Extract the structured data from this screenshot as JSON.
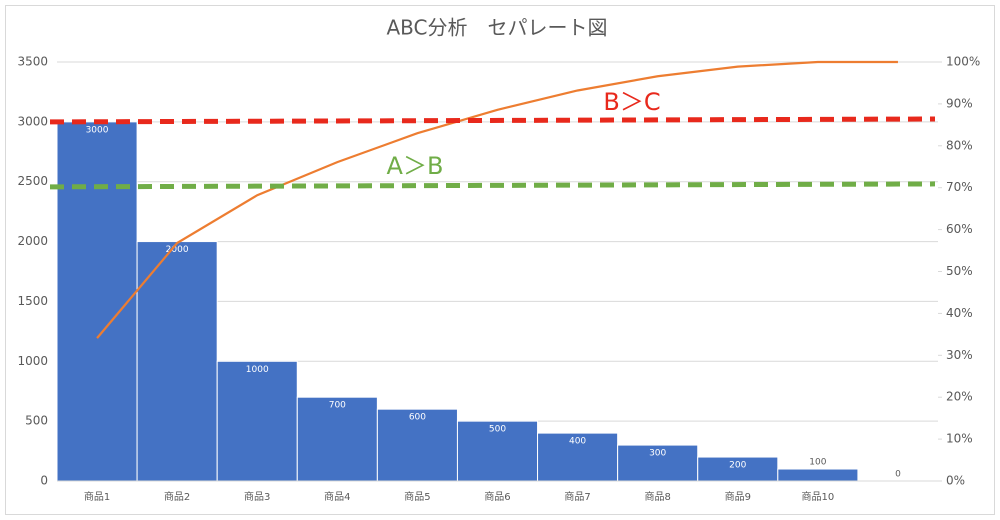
{
  "chart_data": {
    "type": "pareto",
    "title": "ABC分析　セパレート図",
    "categories": [
      "商品1",
      "商品2",
      "商品3",
      "商品4",
      "商品5",
      "商品6",
      "商品7",
      "商品8",
      "商品9",
      "商品10",
      null
    ],
    "series": [
      {
        "type": "bar",
        "color": "#4472c4",
        "values": [
          3000,
          2000,
          1000,
          700,
          600,
          500,
          400,
          300,
          200,
          100,
          0
        ]
      },
      {
        "type": "line",
        "axis": "y2",
        "color": "#ed7d31",
        "values": [
          34.1,
          56.8,
          68.2,
          76.1,
          83.0,
          88.6,
          93.2,
          96.6,
          98.9,
          100,
          100
        ]
      }
    ],
    "reference_lines": [
      {
        "label": "B＞C",
        "color": "#e8291c",
        "values": [
          85.7,
          86.4
        ]
      },
      {
        "label": "A＞B",
        "color": "#70ad47",
        "values": [
          70.2,
          70.9
        ]
      }
    ],
    "ylim": [
      0,
      3500
    ],
    "yticks": [
      0,
      500,
      1000,
      1500,
      2000,
      2500,
      3000,
      3500
    ],
    "y2lim": [
      0,
      100
    ],
    "y2ticks": [
      {
        "value": 0,
        "label": "0%"
      },
      {
        "value": 10,
        "label": "10%"
      },
      {
        "value": 20,
        "label": "20%"
      },
      {
        "value": 30,
        "label": "30%"
      },
      {
        "value": 40,
        "label": "40%"
      },
      {
        "value": 50,
        "label": "50%"
      },
      {
        "value": 60,
        "label": "60%"
      },
      {
        "value": 70,
        "label": "70%"
      },
      {
        "value": 80,
        "label": "80%"
      },
      {
        "value": 90,
        "label": "90%"
      },
      {
        "value": 100,
        "label": "100%"
      }
    ],
    "grid": true
  }
}
